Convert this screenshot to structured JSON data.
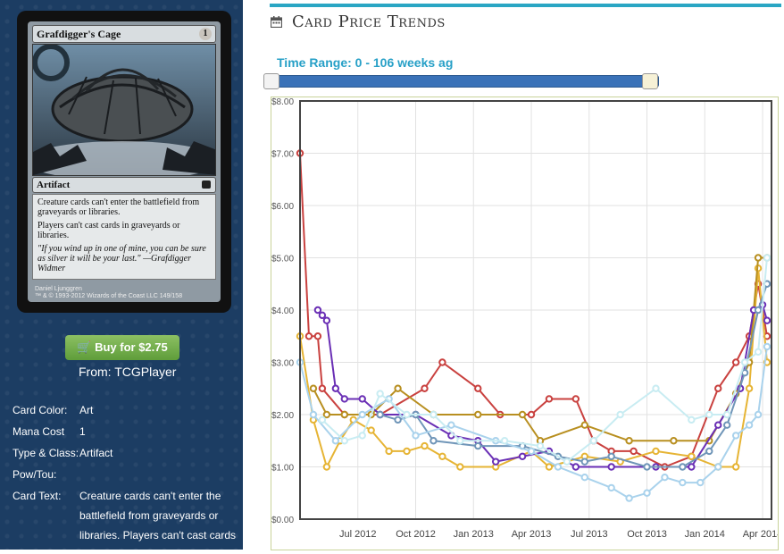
{
  "card": {
    "name": "Grafdigger's Cage",
    "mana": "1",
    "type_line": "Artifact",
    "rules_1": "Creature cards can't enter the battlefield from graveyards or libraries.",
    "rules_2": "Players can't cast cards in graveyards or libraries.",
    "flavor": "\"If you wind up in one of mine, you can be sure as silver it will be your last.\" —Grafdigger Widmer",
    "artist": "Daniel Ljunggren",
    "copyright": "™ & © 1993-2012 Wizards of the Coast LLC 149/158"
  },
  "buy": {
    "label": "Buy for $2.75",
    "source": "From: TCGPlayer"
  },
  "info": [
    {
      "label": "Card Color:",
      "value": "Art"
    },
    {
      "label": "Mana Cost",
      "value": "1"
    },
    {
      "label": "Type & Class:",
      "value": "Artifact"
    },
    {
      "label": "Pow/Tou:",
      "value": ""
    },
    {
      "label": "Card Text:",
      "value": "Creature cards can't enter the battlefield from graveyards or libraries. Players can't cast cards"
    }
  ],
  "header": {
    "title": "Card Price Trends"
  },
  "range": {
    "label": "Time Range: 0 - 106 weeks ag"
  },
  "colors": {
    "accent": "#2aa6c4",
    "slider": "#3a72b8",
    "buy": "#6aa843",
    "panel": "#1c3d63"
  },
  "chart_data": {
    "type": "line",
    "ylim": [
      0,
      8
    ],
    "y_ticks": [
      "$0.00",
      "$1.00",
      "$2.00",
      "$3.00",
      "$4.00",
      "$5.00",
      "$6.00",
      "$7.00",
      "$8.00"
    ],
    "x_ticks": [
      "Jul 2012",
      "Oct 2012",
      "Jan 2013",
      "Apr 2013",
      "Jul 2013",
      "Oct 2013",
      "Jan 2014",
      "Apr 2014"
    ],
    "x_range_weeks": [
      0,
      106
    ],
    "x_tick_weeks": [
      13,
      26,
      39,
      52,
      65,
      78,
      91,
      104
    ],
    "series": [
      {
        "color": "#c9413f",
        "points": [
          [
            0,
            7.0
          ],
          [
            2,
            3.5
          ],
          [
            4,
            3.5
          ],
          [
            5,
            2.5
          ],
          [
            10,
            2.0
          ],
          [
            18,
            2.0
          ],
          [
            28,
            2.5
          ],
          [
            32,
            3.0
          ],
          [
            40,
            2.5
          ],
          [
            45,
            2.0
          ],
          [
            52,
            2.0
          ],
          [
            56,
            2.3
          ],
          [
            62,
            2.3
          ],
          [
            66,
            1.5
          ],
          [
            70,
            1.3
          ],
          [
            75,
            1.3
          ],
          [
            82,
            1.0
          ],
          [
            88,
            1.2
          ],
          [
            94,
            2.5
          ],
          [
            98,
            3.0
          ],
          [
            101,
            3.5
          ],
          [
            103,
            4.5
          ],
          [
            105,
            3.5
          ]
        ]
      },
      {
        "color": "#e6b434",
        "points": [
          [
            0,
            3.5
          ],
          [
            3,
            1.9
          ],
          [
            6,
            1.0
          ],
          [
            9,
            1.5
          ],
          [
            12,
            1.9
          ],
          [
            16,
            1.7
          ],
          [
            20,
            1.3
          ],
          [
            24,
            1.3
          ],
          [
            28,
            1.4
          ],
          [
            32,
            1.2
          ],
          [
            36,
            1.0
          ],
          [
            44,
            1.0
          ],
          [
            52,
            1.3
          ],
          [
            56,
            1.0
          ],
          [
            64,
            1.2
          ],
          [
            72,
            1.1
          ],
          [
            80,
            1.3
          ],
          [
            88,
            1.2
          ],
          [
            94,
            1.0
          ],
          [
            98,
            1.0
          ],
          [
            101,
            2.5
          ],
          [
            103,
            4.8
          ],
          [
            105,
            3.0
          ]
        ]
      },
      {
        "color": "#b88f20",
        "points": [
          [
            3,
            2.5
          ],
          [
            6,
            2.0
          ],
          [
            10,
            2.0
          ],
          [
            16,
            2.0
          ],
          [
            22,
            2.5
          ],
          [
            30,
            2.0
          ],
          [
            40,
            2.0
          ],
          [
            50,
            2.0
          ],
          [
            54,
            1.5
          ],
          [
            64,
            1.8
          ],
          [
            74,
            1.5
          ],
          [
            84,
            1.5
          ],
          [
            92,
            1.5
          ],
          [
            98,
            2.4
          ],
          [
            101,
            3.0
          ],
          [
            103,
            5.0
          ],
          [
            105,
            5.0
          ]
        ]
      },
      {
        "color": "#6a2fb5",
        "points": [
          [
            4,
            4.0
          ],
          [
            5,
            3.9
          ],
          [
            6,
            3.8
          ],
          [
            8,
            2.5
          ],
          [
            10,
            2.3
          ],
          [
            14,
            2.3
          ],
          [
            18,
            2.0
          ],
          [
            26,
            2.0
          ],
          [
            34,
            1.6
          ],
          [
            40,
            1.5
          ],
          [
            44,
            1.1
          ],
          [
            50,
            1.2
          ],
          [
            56,
            1.3
          ],
          [
            62,
            1.0
          ],
          [
            70,
            1.0
          ],
          [
            80,
            1.0
          ],
          [
            88,
            1.0
          ],
          [
            94,
            1.8
          ],
          [
            99,
            2.5
          ],
          [
            102,
            4.0
          ],
          [
            104,
            4.1
          ],
          [
            105,
            3.8
          ]
        ]
      },
      {
        "color": "#6f95b8",
        "points": [
          [
            18,
            2.0
          ],
          [
            22,
            1.9
          ],
          [
            26,
            2.0
          ],
          [
            30,
            1.5
          ],
          [
            40,
            1.4
          ],
          [
            50,
            1.4
          ],
          [
            58,
            1.2
          ],
          [
            64,
            1.1
          ],
          [
            70,
            1.2
          ],
          [
            78,
            1.0
          ],
          [
            86,
            1.0
          ],
          [
            92,
            1.3
          ],
          [
            96,
            1.8
          ],
          [
            100,
            2.8
          ],
          [
            103,
            4.0
          ],
          [
            105,
            4.5
          ]
        ]
      },
      {
        "color": "#a9d2ec",
        "points": [
          [
            0,
            3.0
          ],
          [
            3,
            2.0
          ],
          [
            8,
            1.5
          ],
          [
            14,
            2.0
          ],
          [
            20,
            2.3
          ],
          [
            26,
            1.6
          ],
          [
            34,
            1.8
          ],
          [
            44,
            1.5
          ],
          [
            52,
            1.3
          ],
          [
            58,
            1.0
          ],
          [
            64,
            0.8
          ],
          [
            70,
            0.6
          ],
          [
            74,
            0.4
          ],
          [
            78,
            0.5
          ],
          [
            82,
            0.8
          ],
          [
            86,
            0.7
          ],
          [
            90,
            0.7
          ],
          [
            94,
            1.0
          ],
          [
            98,
            1.6
          ],
          [
            101,
            1.8
          ],
          [
            103,
            2.0
          ],
          [
            105,
            3.3
          ]
        ]
      },
      {
        "color": "#c8ecf2",
        "points": [
          [
            5,
            1.9
          ],
          [
            10,
            1.5
          ],
          [
            14,
            1.6
          ],
          [
            18,
            2.4
          ],
          [
            24,
            2.0
          ],
          [
            30,
            2.0
          ],
          [
            36,
            1.5
          ],
          [
            46,
            1.5
          ],
          [
            54,
            1.4
          ],
          [
            60,
            1.1
          ],
          [
            66,
            1.5
          ],
          [
            72,
            2.0
          ],
          [
            80,
            2.5
          ],
          [
            88,
            1.9
          ],
          [
            92,
            2.0
          ],
          [
            96,
            2.0
          ],
          [
            100,
            3.0
          ],
          [
            103,
            3.2
          ],
          [
            105,
            5.0
          ]
        ]
      }
    ]
  }
}
